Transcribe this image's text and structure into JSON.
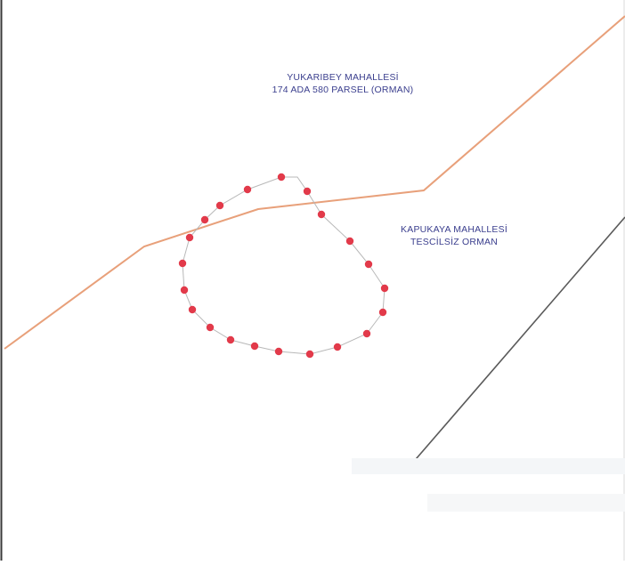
{
  "map": {
    "labels": {
      "north_parcel": {
        "line1": "YUKARIBEY MAHALLESİ",
        "line2": "174 ADA 580 PARSEL (ORMAN)"
      },
      "east_parcel": {
        "line1": "KAPUKAYA MAHALLESİ",
        "line2": "TESCİLSİZ ORMAN"
      }
    },
    "colors": {
      "neighborhood_boundary": "#e8a07a",
      "area_outline": "#b0b0b0",
      "vertex_points": "#e23a4a",
      "road_line": "#5a5a5a",
      "label_text": "#3b3f8e",
      "frame": "#3a3a3a"
    },
    "vertex_count": 20
  }
}
